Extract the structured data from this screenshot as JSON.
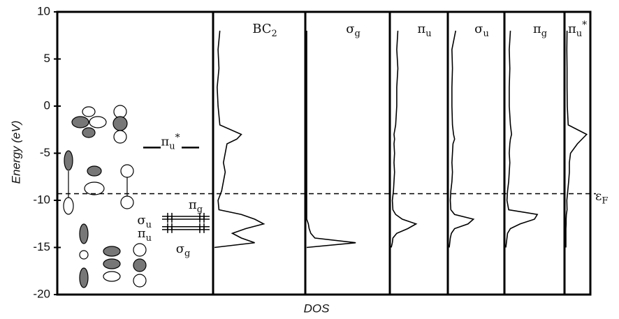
{
  "chart_data": {
    "type": "dos",
    "y_label": "Energy (eV)",
    "x_label": "DOS",
    "ylim": [
      -20,
      10
    ],
    "yticks": [
      -20,
      -15,
      -10,
      -5,
      0,
      5,
      10
    ],
    "fermi_level": -9.3,
    "fermi_label": "ε",
    "fermi_sub": "F",
    "xlim": [
      0,
      1
    ],
    "energies": [
      8,
      6,
      4,
      2,
      0,
      -2,
      -3,
      -3.5,
      -4,
      -5,
      -6,
      -7,
      -8,
      -9,
      -10,
      -11,
      -11.5,
      -12,
      -12.5,
      -13,
      -13.5,
      -14,
      -14.5,
      -15
    ],
    "panels": [
      {
        "name": "BC",
        "name_sub": "2",
        "values": [
          0.06,
          0.04,
          0.05,
          0.03,
          0.04,
          0.06,
          0.3,
          0.25,
          0.14,
          0.12,
          0.1,
          0.12,
          0.1,
          0.08,
          0.04,
          0.05,
          0.3,
          0.45,
          0.55,
          0.35,
          0.2,
          0.3,
          0.45,
          0
        ]
      },
      {
        "name": "σ",
        "name_sub": "g",
        "values": [
          0,
          0,
          0,
          0,
          0,
          0,
          0,
          0,
          0,
          0,
          0,
          0,
          0,
          0,
          0,
          0,
          0,
          0,
          0.02,
          0.03,
          0.05,
          0.1,
          0.6,
          0
        ]
      },
      {
        "name": "π",
        "name_sub": "u",
        "values": [
          0.12,
          0.1,
          0.12,
          0.1,
          0.1,
          0.08,
          0.05,
          0.06,
          0.05,
          0.06,
          0.05,
          0.06,
          0.05,
          0.04,
          0.02,
          0.03,
          0.08,
          0.2,
          0.45,
          0.3,
          0.1,
          0.03,
          0.02,
          0
        ]
      },
      {
        "name": "σ",
        "name_sub": "u",
        "values": [
          0.12,
          0.05,
          0.06,
          0.05,
          0.05,
          0.06,
          0.08,
          0.1,
          0.07,
          0.06,
          0.05,
          0.06,
          0.05,
          0.03,
          0.02,
          0.03,
          0.1,
          0.45,
          0.35,
          0.1,
          0.04,
          0.02,
          0.01,
          0
        ]
      },
      {
        "name": "π",
        "name_sub": "g",
        "values": [
          0.08,
          0.06,
          0.07,
          0.06,
          0.06,
          0.08,
          0.1,
          0.08,
          0.07,
          0.06,
          0.07,
          0.06,
          0.05,
          0.03,
          0.02,
          0.05,
          0.55,
          0.5,
          0.25,
          0.08,
          0.03,
          0.02,
          0.01,
          0
        ]
      },
      {
        "name": "π",
        "name_sub": "u",
        "name_sup": "*",
        "values": [
          0.05,
          0.04,
          0.05,
          0.05,
          0.06,
          0.1,
          0.9,
          0.7,
          0.5,
          0.2,
          0.15,
          0.15,
          0.12,
          0.08,
          0.04,
          0.05,
          0.02,
          0.01,
          0.01,
          0,
          0,
          0,
          0,
          0
        ]
      }
    ],
    "mo_levels": [
      {
        "label": "π",
        "sub": "u",
        "sup": "*",
        "energy": -4.4
      },
      {
        "label": "π",
        "sub": "g",
        "energy": -11.7
      },
      {
        "label": "σ",
        "sub": "u",
        "energy": -12.0
      },
      {
        "label": "π",
        "sub": "u",
        "energy": -12.8
      },
      {
        "label": "σ",
        "sub": "g",
        "energy": -13.1
      }
    ]
  }
}
